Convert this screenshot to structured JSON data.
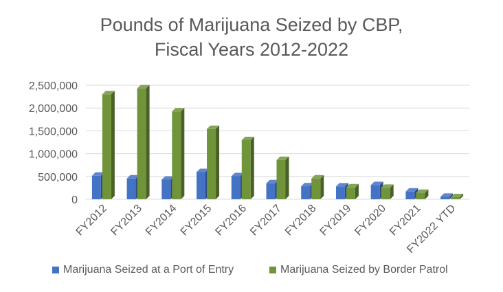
{
  "chart_data": {
    "type": "bar",
    "title_lines": [
      "Pounds of Marijuana Seized by CBP,",
      "Fiscal Years 2012-2022"
    ],
    "xlabel": "",
    "ylabel": "",
    "categories": [
      "FY2012",
      "FY2013",
      "FY2014",
      "FY2015",
      "FY2016",
      "FY2017",
      "FY2018",
      "FY2019",
      "FY2020",
      "FY2021",
      "FY2022 YTD"
    ],
    "series": [
      {
        "name": "Marijuana Seized at a Port of Entry",
        "color": "#4472C4",
        "values": [
          515000,
          455000,
          430000,
          595000,
          505000,
          350000,
          285000,
          280000,
          310000,
          170000,
          55000
        ]
      },
      {
        "name": "Marijuana Seized by Border Patrol",
        "color": "#70943A",
        "values": [
          2300000,
          2430000,
          1925000,
          1540000,
          1295000,
          860000,
          455000,
          260000,
          250000,
          140000,
          45000
        ]
      }
    ],
    "ylim": [
      0,
      2500000
    ],
    "yticks": [
      0,
      500000,
      1000000,
      1500000,
      2000000,
      2500000
    ],
    "ytick_labels": [
      "0",
      "500,000",
      "1,000,000",
      "1,500,000",
      "2,000,000",
      "2,500,000"
    ],
    "grid": true,
    "legend_position": "bottom",
    "style": "3d-column"
  }
}
